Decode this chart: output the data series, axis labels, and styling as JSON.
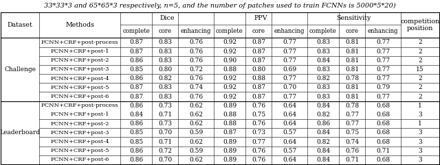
{
  "title": "33*33*3 and 65*65*3 respectively, n=5, and the number of patches used to train FCNNs is 5000*5*20)",
  "challenge_rows": [
    [
      "FCNN+CRF+post-process",
      "0.87",
      "0.83",
      "0.76",
      "0.92",
      "0.87",
      "0.77",
      "0.83",
      "0.81",
      "0.77",
      "2"
    ],
    [
      "FCNN+CRF+post-1",
      "0.87",
      "0.83",
      "0.76",
      "0.92",
      "0.87",
      "0.77",
      "0.83",
      "0.81",
      "0.77",
      "2"
    ],
    [
      "FCNN+CRF+post-2",
      "0.86",
      "0.83",
      "0.76",
      "0.90",
      "0.87",
      "0.77",
      "0.84",
      "0.81",
      "0.77",
      "2"
    ],
    [
      "FCNN+CRF+post-3",
      "0.85",
      "0.80",
      "0.72",
      "0.88",
      "0.80",
      "0.69",
      "0.83",
      "0.81",
      "0.77",
      "15"
    ],
    [
      "FCNN+CRF+post-4",
      "0.86",
      "0.82",
      "0.76",
      "0.92",
      "0.88",
      "0.77",
      "0.82",
      "0.78",
      "0.77",
      "2"
    ],
    [
      "FCNN+CRF+post-5",
      "0.87",
      "0.83",
      "0.74",
      "0.92",
      "0.87",
      "0.70",
      "0.83",
      "0.81",
      "0.79",
      "2"
    ],
    [
      "FCNN+CRF+post-6",
      "0.87",
      "0.83",
      "0.76",
      "0.92",
      "0.87",
      "0.77",
      "0.83",
      "0.81",
      "0.77",
      "2"
    ]
  ],
  "leaderboard_rows": [
    [
      "FCNN+CRF+post-process",
      "0.86",
      "0.73",
      "0.62",
      "0.89",
      "0.76",
      "0.64",
      "0.84",
      "0.78",
      "0.68",
      "1"
    ],
    [
      "FCNN+CRF+post-1",
      "0.84",
      "0.71",
      "0.62",
      "0.88",
      "0.75",
      "0.64",
      "0.82",
      "0.77",
      "0.68",
      "3"
    ],
    [
      "FCNN+CRF+post-2",
      "0.86",
      "0.73",
      "0.62",
      "0.88",
      "0.76",
      "0.64",
      "0.86",
      "0.77",
      "0.68",
      "1"
    ],
    [
      "FCNN+CRF+post-3",
      "0.85",
      "0.70",
      "0.59",
      "0.87",
      "0.73",
      "0.57",
      "0.84",
      "0.75",
      "0.68",
      "3"
    ],
    [
      "FCNN+CRF+post-4",
      "0.85",
      "0.71",
      "0.62",
      "0.89",
      "0.77",
      "0.64",
      "0.82",
      "0.74",
      "0.68",
      "3"
    ],
    [
      "FCNN+CRF+post-5",
      "0.86",
      "0.72",
      "0.59",
      "0.89",
      "0.76",
      "0.57",
      "0.84",
      "0.76",
      "0.71",
      "3"
    ],
    [
      "FCNN+CRF+post-6",
      "0.86",
      "0.70",
      "0.62",
      "0.89",
      "0.76",
      "0.64",
      "0.84",
      "0.71",
      "0.68",
      "3"
    ]
  ],
  "bg_color": "#ffffff",
  "line_color": "#000000",
  "title_fs": 7.0,
  "header_fs": 6.8,
  "subheader_fs": 6.2,
  "data_fs": 6.5,
  "method_fs": 6.0,
  "dataset_fs": 6.5
}
